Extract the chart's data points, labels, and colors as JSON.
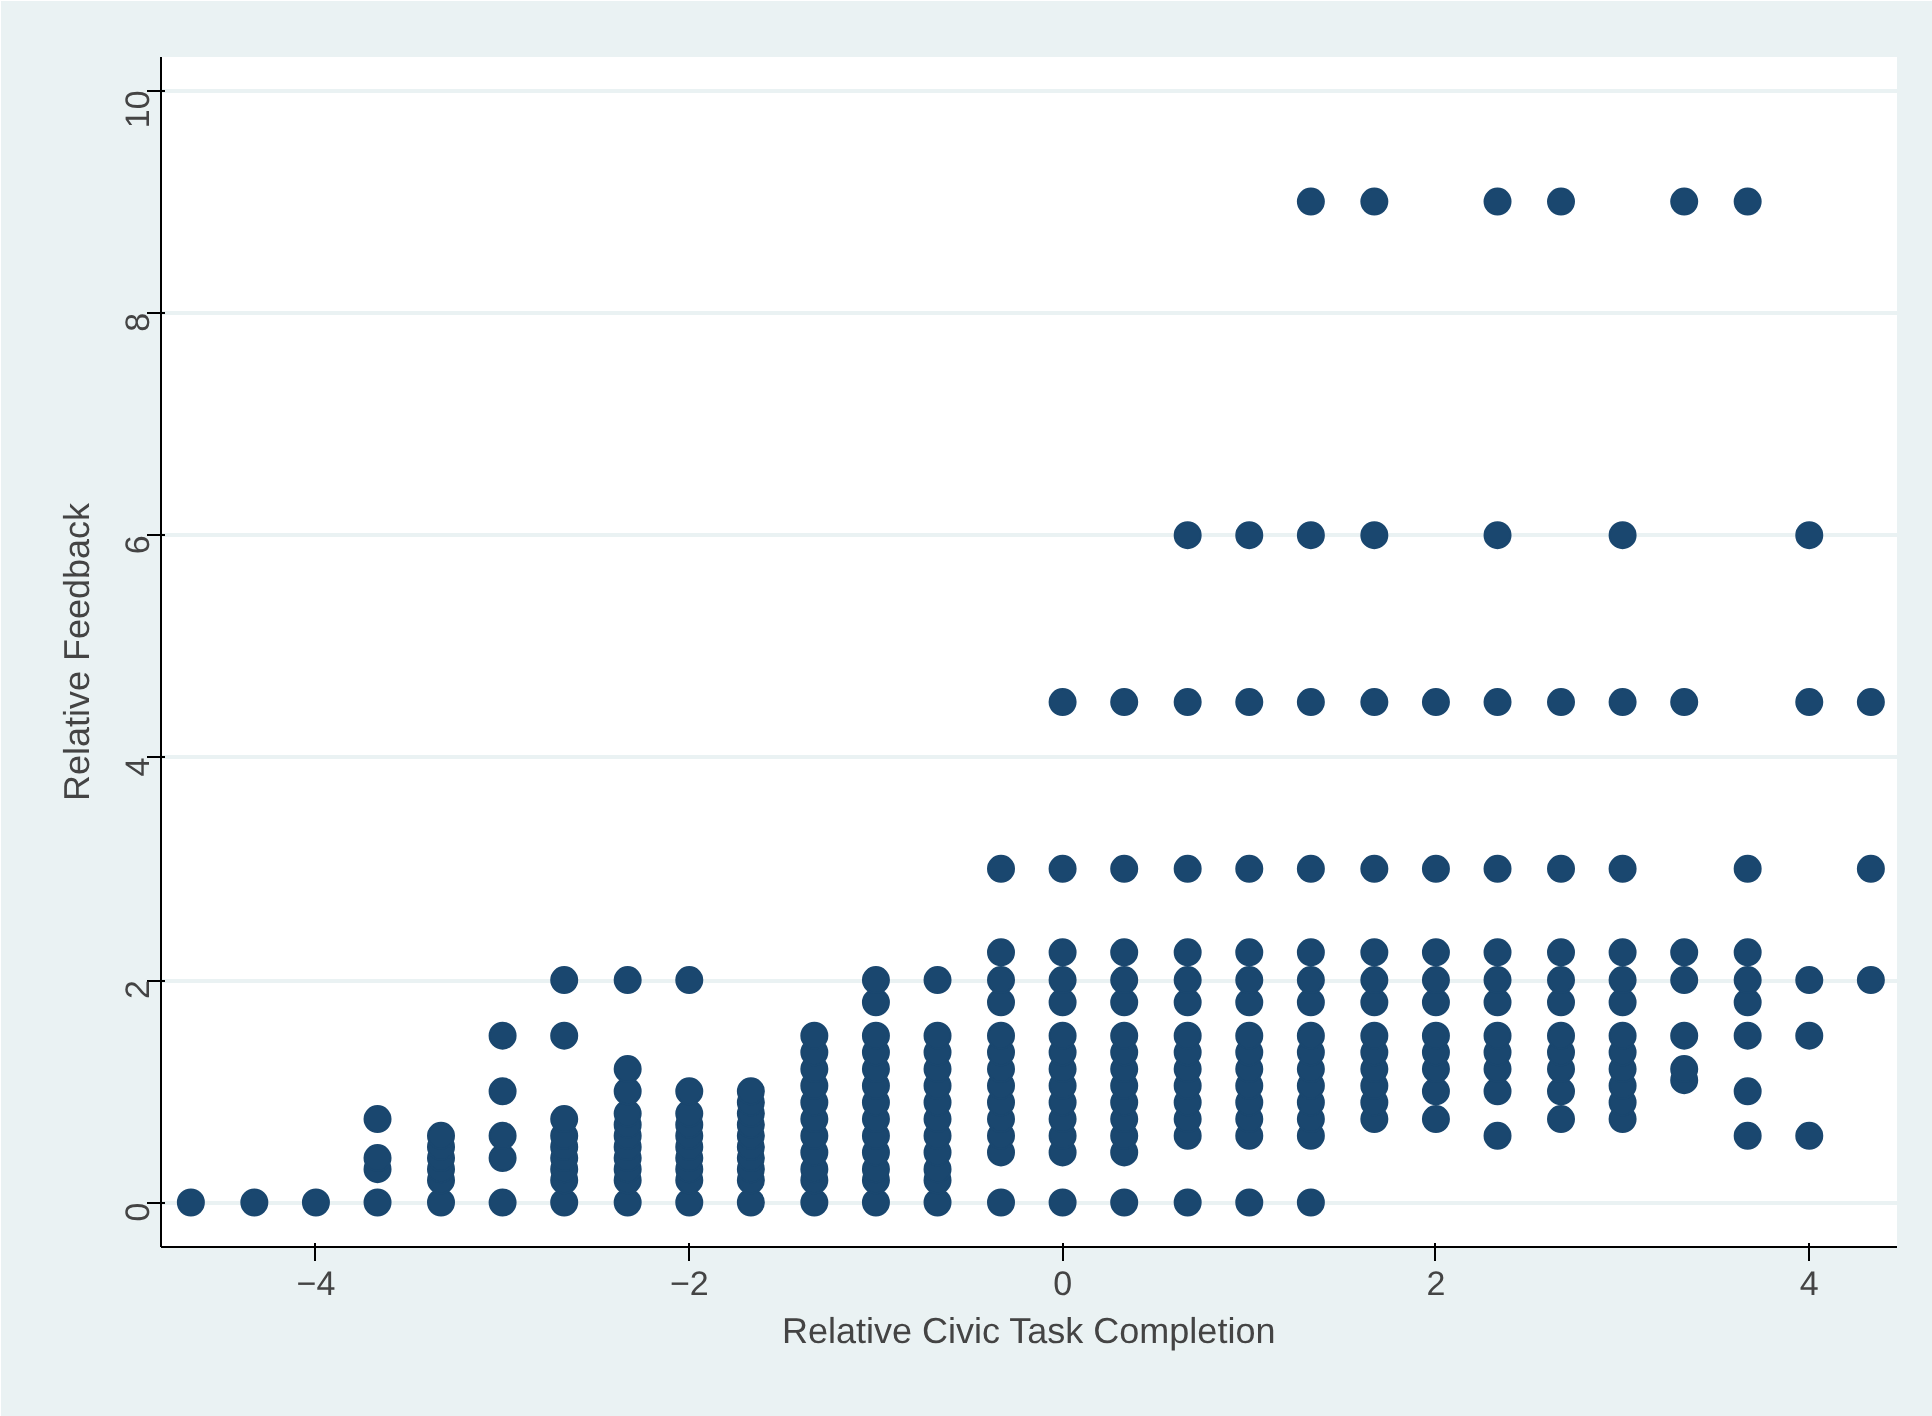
{
  "chart_data": {
    "type": "scatter",
    "xlabel": "Relative Civic Task Completion",
    "ylabel": "Relative Feedback",
    "xlim": [
      -4.83,
      4.47
    ],
    "ylim": [
      -0.4,
      10.3
    ],
    "xticks": [
      -4,
      -2,
      0,
      2,
      4
    ],
    "yticks": [
      0,
      2,
      4,
      6,
      8,
      10
    ],
    "grid": "y",
    "marker": "circle",
    "series": [
      {
        "color": "#1a476f",
        "x": [
          -4.67,
          -4.33,
          -4,
          -3.67,
          -3.67,
          -3.67,
          -3.67,
          -3.33,
          -3.33,
          -3.33,
          -3.33,
          -3.33,
          -3.33,
          -3,
          -3,
          -3,
          -3,
          -3,
          -2.67,
          -2.67,
          -2.67,
          -2.67,
          -2.67,
          -2.67,
          -2.67,
          -2.67,
          -2.67,
          -2.33,
          -2.33,
          -2.33,
          -2.33,
          -2.33,
          -2.33,
          -2.33,
          -2.33,
          -2.33,
          -2.33,
          -2.33,
          -2,
          -2,
          -2,
          -2,
          -2,
          -2,
          -2,
          -2,
          -2,
          -2,
          -1.67,
          -1.67,
          -1.67,
          -1.67,
          -1.67,
          -1.67,
          -1.67,
          -1.67,
          -1.67,
          -1.67,
          -1.33,
          -1.33,
          -1.33,
          -1.33,
          -1.33,
          -1.33,
          -1.33,
          -1.33,
          -1.33,
          -1.33,
          -1.33,
          -1,
          -1,
          -1,
          -1,
          -1,
          -1,
          -1,
          -1,
          -1,
          -1,
          -1,
          -1,
          -1,
          -0.67,
          -0.67,
          -0.67,
          -0.67,
          -0.67,
          -0.67,
          -0.67,
          -0.67,
          -0.67,
          -0.67,
          -0.67,
          -0.67,
          -0.33,
          -0.33,
          -0.33,
          -0.33,
          -0.33,
          -0.33,
          -0.33,
          -0.33,
          -0.33,
          -0.33,
          -0.33,
          -0.33,
          -0.33,
          0,
          0,
          0,
          0,
          0,
          0,
          0,
          0,
          0,
          0,
          0,
          0,
          0,
          0,
          0.33,
          0.33,
          0.33,
          0.33,
          0.33,
          0.33,
          0.33,
          0.33,
          0.33,
          0.33,
          0.33,
          0.33,
          0.33,
          0.33,
          0.67,
          0.67,
          0.67,
          0.67,
          0.67,
          0.67,
          0.67,
          0.67,
          0.67,
          0.67,
          0.67,
          0.67,
          0.67,
          0.67,
          1,
          1,
          1,
          1,
          1,
          1,
          1,
          1,
          1,
          1,
          1,
          1,
          1,
          1,
          1.33,
          1.33,
          1.33,
          1.33,
          1.33,
          1.33,
          1.33,
          1.33,
          1.33,
          1.33,
          1.33,
          1.33,
          1.33,
          1.33,
          1.33,
          1.67,
          1.67,
          1.67,
          1.67,
          1.67,
          1.67,
          1.67,
          1.67,
          1.67,
          1.67,
          1.67,
          1.67,
          1.67,
          2,
          2,
          2,
          2,
          2,
          2,
          2,
          2,
          2,
          2,
          2.33,
          2.33,
          2.33,
          2.33,
          2.33,
          2.33,
          2.33,
          2.33,
          2.33,
          2.33,
          2.33,
          2.33,
          2.67,
          2.67,
          2.67,
          2.67,
          2.67,
          2.67,
          2.67,
          2.67,
          2.67,
          2.67,
          2.67,
          3,
          3,
          3,
          3,
          3,
          3,
          3,
          3,
          3,
          3,
          3,
          3,
          3.33,
          3.33,
          3.33,
          3.33,
          3.33,
          3.33,
          3.33,
          3.67,
          3.67,
          3.67,
          3.67,
          3.67,
          3.67,
          3.67,
          3.67,
          4,
          4,
          4,
          4,
          4,
          4.33,
          4.33,
          4.33
        ],
        "values": [
          0,
          0,
          0,
          0,
          0.3,
          0.4,
          0.75,
          0,
          0.2,
          0.3,
          0.4,
          0.5,
          0.6,
          0,
          0.4,
          0.6,
          1,
          1.5,
          0,
          0.2,
          0.3,
          0.4,
          0.5,
          0.6,
          0.75,
          1.5,
          2,
          0,
          0.2,
          0.3,
          0.4,
          0.5,
          0.6,
          0.7,
          0.8,
          1,
          1.2,
          2,
          0,
          0.2,
          0.3,
          0.4,
          0.5,
          0.6,
          0.7,
          0.8,
          1,
          2,
          0,
          0.2,
          0.3,
          0.4,
          0.5,
          0.6,
          0.7,
          0.8,
          0.9,
          1,
          0,
          0.2,
          0.3,
          0.45,
          0.6,
          0.75,
          0.9,
          1.05,
          1.2,
          1.35,
          1.5,
          0,
          0.2,
          0.3,
          0.45,
          0.6,
          0.75,
          0.9,
          1.05,
          1.2,
          1.35,
          1.5,
          1.8,
          2,
          0,
          0.2,
          0.3,
          0.45,
          0.6,
          0.75,
          0.9,
          1.05,
          1.2,
          1.35,
          1.5,
          2,
          0,
          0.45,
          0.6,
          0.75,
          0.9,
          1.05,
          1.2,
          1.35,
          1.5,
          1.8,
          2,
          2.25,
          3,
          0,
          0.45,
          0.6,
          0.75,
          0.9,
          1.05,
          1.2,
          1.35,
          1.5,
          1.8,
          2,
          2.25,
          3,
          4.5,
          0,
          0.45,
          0.6,
          0.75,
          0.9,
          1.05,
          1.2,
          1.35,
          1.5,
          1.8,
          2,
          2.25,
          3,
          4.5,
          0,
          0.6,
          0.75,
          0.9,
          1.05,
          1.2,
          1.35,
          1.5,
          1.8,
          2,
          2.25,
          3,
          4.5,
          6,
          0,
          0.6,
          0.75,
          0.9,
          1.05,
          1.2,
          1.35,
          1.5,
          1.8,
          2,
          2.25,
          3,
          4.5,
          6,
          0,
          0.6,
          0.75,
          0.9,
          1.05,
          1.2,
          1.35,
          1.5,
          1.8,
          2,
          2.25,
          3,
          4.5,
          6,
          9,
          0.75,
          0.9,
          1.05,
          1.2,
          1.35,
          1.5,
          1.8,
          2,
          2.25,
          3,
          4.5,
          6,
          9,
          0.75,
          1,
          1.2,
          1.35,
          1.5,
          1.8,
          2,
          2.25,
          3,
          4.5,
          0.6,
          1,
          1.2,
          1.35,
          1.5,
          1.8,
          2,
          2.25,
          3,
          4.5,
          6,
          9,
          0.75,
          1,
          1.2,
          1.35,
          1.5,
          1.8,
          2,
          2.25,
          3,
          4.5,
          9,
          0.75,
          0.9,
          1.05,
          1.2,
          1.35,
          1.5,
          1.8,
          2,
          2.25,
          3,
          4.5,
          6,
          1.1,
          1.2,
          1.5,
          2,
          2.25,
          4.5,
          9,
          0.6,
          1,
          1.5,
          1.8,
          2,
          2.25,
          3,
          9,
          0.6,
          1.5,
          2,
          4.5,
          6,
          2,
          3,
          4.5
        ]
      }
    ]
  }
}
